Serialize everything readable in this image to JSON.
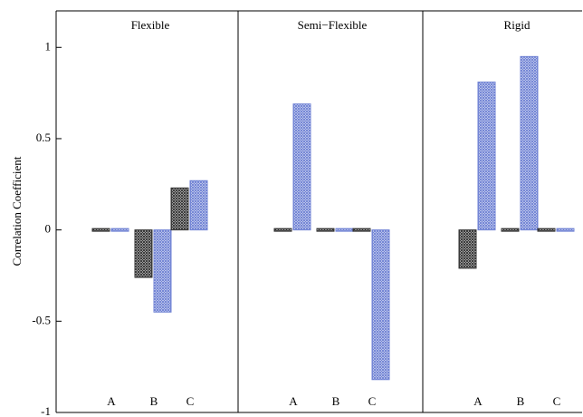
{
  "chart_data": {
    "type": "bar",
    "ylabel": "Correlation Coefficient",
    "ylim": [
      -1,
      1.2
    ],
    "yticks": [
      1,
      0.5,
      0,
      -0.5,
      -1
    ],
    "panels": [
      {
        "title": "Flexible",
        "categories": [
          "A",
          "B",
          "C"
        ],
        "series": [
          {
            "color": "#333333",
            "values": [
              0,
              -0.26,
              0.23
            ]
          },
          {
            "color": "#6f82d4",
            "values": [
              0,
              -0.45,
              0.27
            ]
          }
        ]
      },
      {
        "title": "Semi−Flexible",
        "categories": [
          "A",
          "B",
          "C"
        ],
        "series": [
          {
            "color": "#333333",
            "values": [
              0,
              0,
              0
            ]
          },
          {
            "color": "#6f82d4",
            "values": [
              0.69,
              0,
              -0.82
            ]
          }
        ]
      },
      {
        "title": "Rigid",
        "categories": [
          "A",
          "B",
          "C"
        ],
        "series": [
          {
            "color": "#333333",
            "values": [
              -0.21,
              0,
              0
            ]
          },
          {
            "color": "#6f82d4",
            "values": [
              0.81,
              0.95,
              0
            ]
          }
        ]
      }
    ]
  }
}
